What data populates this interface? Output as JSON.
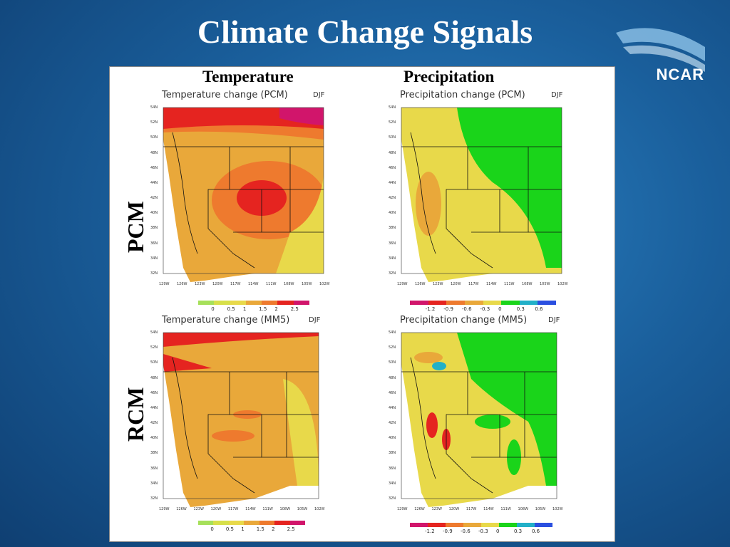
{
  "slide": {
    "title": "Climate Change Signals",
    "logo_text": "NCAR",
    "column_headers": [
      "Temperature",
      "Precipitation"
    ],
    "row_labels": [
      "PCM",
      "RCM"
    ]
  },
  "lat_ticks": [
    "54N",
    "52N",
    "50N",
    "48N",
    "46N",
    "44N",
    "42N",
    "40N",
    "38N",
    "36N",
    "34N",
    "32N"
  ],
  "lon_ticks": [
    "129W",
    "126W",
    "123W",
    "120W",
    "117W",
    "114W",
    "111W",
    "108W",
    "105W",
    "102W"
  ],
  "maps": {
    "temp_pcm": {
      "title": "Temperature change (PCM)",
      "season": "DJF"
    },
    "prec_pcm": {
      "title": "Precipitation change (PCM)",
      "season": "DJF"
    },
    "temp_rcm": {
      "title": "Temperature change (MM5)",
      "season": "DJF"
    },
    "prec_rcm": {
      "title": "Precipitation change (MM5)",
      "season": "DJF"
    }
  },
  "colorbars": {
    "temperature": {
      "labels": [
        "0",
        "0.5",
        "1",
        "1.5",
        "2",
        "2.5"
      ],
      "colors": [
        "#a6e05a",
        "#d7e04a",
        "#e8d94a",
        "#e9a83a",
        "#ee7a2e",
        "#e52420",
        "#d1156b"
      ]
    },
    "precipitation": {
      "labels": [
        "-1.2",
        "-0.9",
        "-0.6",
        "-0.3",
        "0",
        "0.3",
        "0.6"
      ],
      "colors": [
        "#d1156b",
        "#e52420",
        "#ee7a2e",
        "#e9a83a",
        "#e8d94a",
        "#1ad41a",
        "#22b0c8",
        "#2a4fe0"
      ]
    }
  }
}
